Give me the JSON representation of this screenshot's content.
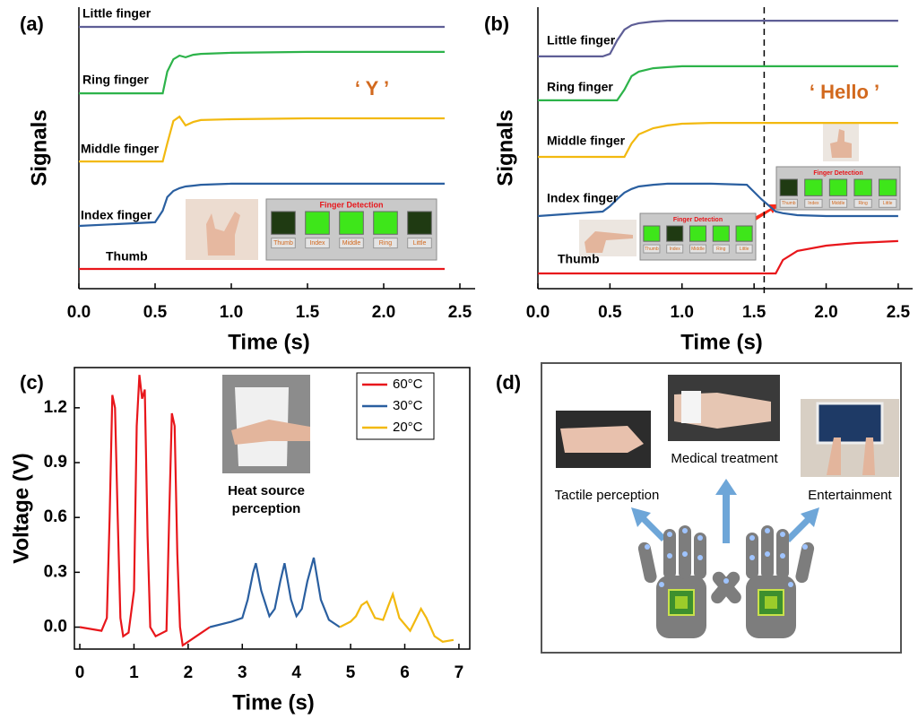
{
  "chart_data": [
    {
      "type": "line",
      "panel_label": "(a)",
      "xlabel": "Time (s)",
      "ylabel": "Signals",
      "annotation": "‘ Y ’",
      "x": [
        0,
        0.5,
        0.55,
        0.58,
        0.62,
        0.66,
        0.7,
        0.75,
        0.8,
        1.0,
        1.5,
        2.0,
        2.4
      ],
      "xlim": [
        0,
        2.6
      ],
      "xticks": [
        {
          "value": 0,
          "label": "0.0"
        },
        0.5,
        {
          "value": 1,
          "label": "1.0"
        },
        1.5,
        {
          "value": 2,
          "label": "2.0"
        },
        2.5
      ],
      "ylim": [
        0,
        10
      ],
      "series": [
        {
          "name": "Little finger",
          "color": "#5e5e96",
          "values": [
            9.3,
            9.3,
            9.3,
            9.3,
            9.3,
            9.3,
            9.3,
            9.3,
            9.3,
            9.3,
            9.3,
            9.3,
            9.3
          ]
        },
        {
          "name": "Ring finger",
          "color": "#2db34a",
          "values": [
            6.94,
            6.94,
            6.94,
            7.71,
            8.15,
            8.28,
            8.22,
            8.31,
            8.34,
            8.38,
            8.41,
            8.41,
            8.41
          ]
        },
        {
          "name": "Middle finger",
          "color": "#f2b90f",
          "values": [
            4.52,
            4.52,
            4.52,
            5.16,
            5.96,
            6.11,
            5.8,
            5.92,
            5.99,
            6.02,
            6.05,
            6.05,
            6.05
          ]
        },
        {
          "name": "Index finger",
          "color": "#2a5fa0",
          "values": [
            2.23,
            2.36,
            2.77,
            3.25,
            3.47,
            3.57,
            3.63,
            3.66,
            3.69,
            3.73,
            3.73,
            3.73,
            3.73
          ]
        },
        {
          "name": "Thumb",
          "color": "#e8161b",
          "values": [
            0.7,
            0.7,
            0.7,
            0.7,
            0.7,
            0.7,
            0.7,
            0.7,
            0.7,
            0.7,
            0.7,
            0.7,
            0.7
          ]
        }
      ],
      "insets": [
        {
          "title": "Finger Detection",
          "labels": [
            "Thumb",
            "Index",
            "Middle",
            "Ring",
            "Little"
          ]
        }
      ]
    },
    {
      "type": "line",
      "panel_label": "(b)",
      "xlabel": "Time (s)",
      "ylabel": "Signals",
      "annotation": "‘ Hello ’",
      "x": [
        0,
        0.45,
        0.5,
        0.55,
        0.6,
        0.65,
        0.7,
        0.8,
        0.9,
        1.0,
        1.2,
        1.45,
        1.55,
        1.65,
        1.7,
        1.8,
        2.0,
        2.2,
        2.5
      ],
      "xlim": [
        0,
        2.6
      ],
      "xticks": [
        {
          "value": 0,
          "label": "0.0"
        },
        0.5,
        {
          "value": 1,
          "label": "1.0"
        },
        1.5,
        {
          "value": 2,
          "label": "2.0"
        },
        2.5
      ],
      "ylim": [
        0,
        10
      ],
      "vline": 1.57,
      "series": [
        {
          "name": "Little finger",
          "color": "#5e5e96",
          "values": [
            8.25,
            8.25,
            8.34,
            8.82,
            9.2,
            9.36,
            9.43,
            9.49,
            9.52,
            9.52,
            9.52,
            9.52,
            9.52,
            9.52,
            9.52,
            9.52,
            9.52,
            9.52,
            9.52
          ]
        },
        {
          "name": "Ring finger",
          "color": "#2db34a",
          "values": [
            6.69,
            6.69,
            6.69,
            6.69,
            7.07,
            7.55,
            7.71,
            7.83,
            7.87,
            7.9,
            7.9,
            7.9,
            7.9,
            7.9,
            7.9,
            7.9,
            7.9,
            7.9,
            7.9
          ]
        },
        {
          "name": "Middle finger",
          "color": "#f2b90f",
          "values": [
            4.68,
            4.68,
            4.68,
            4.68,
            4.68,
            5.16,
            5.48,
            5.7,
            5.8,
            5.86,
            5.89,
            5.89,
            5.89,
            5.89,
            5.89,
            5.89,
            5.89,
            5.89,
            5.89
          ]
        },
        {
          "name": "Index finger",
          "color": "#2a5fa0",
          "values": [
            2.58,
            2.74,
            2.93,
            3.18,
            3.41,
            3.54,
            3.63,
            3.69,
            3.73,
            3.73,
            3.73,
            3.69,
            3.18,
            2.74,
            2.68,
            2.61,
            2.58,
            2.58,
            2.58
          ]
        },
        {
          "name": "Thumb",
          "color": "#e8161b",
          "values": [
            0.54,
            0.54,
            0.54,
            0.54,
            0.54,
            0.54,
            0.54,
            0.54,
            0.54,
            0.54,
            0.54,
            0.54,
            0.54,
            0.54,
            1.02,
            1.34,
            1.53,
            1.62,
            1.69
          ]
        }
      ],
      "insets": [
        {
          "title": "Finger Detection",
          "labels": [
            "Thumb",
            "Index",
            "Middle",
            "Ring",
            "Little"
          ]
        },
        {
          "title": "Finger Detection",
          "labels": [
            "Thumb",
            "Index",
            "Middle",
            "Ring",
            "Little"
          ]
        }
      ]
    },
    {
      "type": "line",
      "panel_label": "(c)",
      "xlabel": "Time (s)",
      "ylabel": "Voltage (V)",
      "annotation": [
        "Heat source",
        "perception"
      ],
      "xlim": [
        -0.1,
        7.2
      ],
      "xticks": [
        0,
        1,
        2,
        3,
        4,
        5,
        6,
        7
      ],
      "ylim": [
        -0.12,
        1.42
      ],
      "yticks": [
        {
          "value": 0,
          "label": "0.0"
        },
        0.3,
        0.6,
        0.9,
        1.2
      ],
      "legend": "upper right",
      "series": [
        {
          "name": "60°C",
          "color": "#e8161b",
          "x": [
            0,
            0.4,
            0.5,
            0.55,
            0.6,
            0.65,
            0.7,
            0.75,
            0.8,
            0.9,
            1.0,
            1.05,
            1.1,
            1.15,
            1.2,
            1.25,
            1.3,
            1.4,
            1.6,
            1.65,
            1.7,
            1.75,
            1.8,
            1.85,
            1.9,
            2.0,
            2.2,
            2.4
          ],
          "values": [
            0,
            -0.02,
            0.05,
            0.6,
            1.27,
            1.2,
            0.6,
            0.05,
            -0.05,
            -0.03,
            0.2,
            1.1,
            1.38,
            1.25,
            1.3,
            0.5,
            0,
            -0.05,
            -0.02,
            0.6,
            1.17,
            1.1,
            0.4,
            0,
            -0.1,
            -0.08,
            -0.04,
            0
          ]
        },
        {
          "name": "30°C",
          "color": "#2a5fa0",
          "x": [
            2.4,
            2.8,
            3.0,
            3.1,
            3.2,
            3.25,
            3.35,
            3.5,
            3.6,
            3.7,
            3.78,
            3.9,
            4.0,
            4.1,
            4.2,
            4.32,
            4.45,
            4.6,
            4.8
          ],
          "values": [
            0,
            0.03,
            0.05,
            0.15,
            0.3,
            0.35,
            0.2,
            0.06,
            0.1,
            0.25,
            0.35,
            0.15,
            0.06,
            0.1,
            0.25,
            0.38,
            0.15,
            0.04,
            0
          ]
        },
        {
          "name": "20°C",
          "color": "#f2b90f",
          "x": [
            4.8,
            5.0,
            5.1,
            5.2,
            5.3,
            5.45,
            5.6,
            5.7,
            5.78,
            5.9,
            6.1,
            6.2,
            6.3,
            6.4,
            6.55,
            6.7,
            6.9
          ],
          "values": [
            0,
            0.03,
            0.06,
            0.12,
            0.14,
            0.05,
            0.04,
            0.12,
            0.18,
            0.05,
            -0.02,
            0.04,
            0.1,
            0.05,
            -0.05,
            -0.08,
            -0.07
          ]
        }
      ]
    }
  ],
  "diagram": {
    "panel_label": "(d)",
    "items": [
      {
        "label": "Tactile perception"
      },
      {
        "label": "Medical treatment"
      },
      {
        "label": "Entertainment"
      }
    ]
  }
}
